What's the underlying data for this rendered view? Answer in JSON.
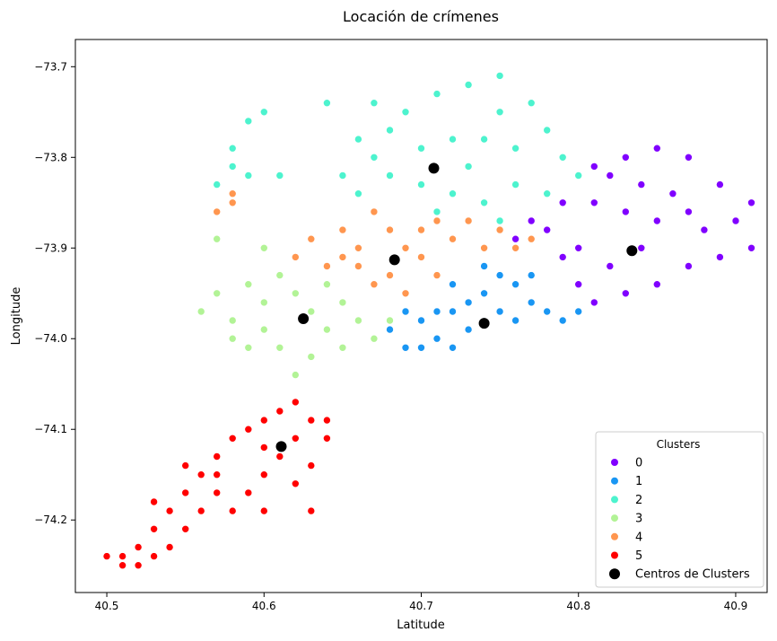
{
  "chart_data": {
    "type": "scatter",
    "title": "Locación de crímenes",
    "xlabel": "Latitude",
    "ylabel": "Longitude",
    "xlim": [
      40.48,
      40.92
    ],
    "ylim": [
      -74.28,
      -73.67
    ],
    "x_ticks": [
      40.5,
      40.6,
      40.7,
      40.8,
      40.9
    ],
    "x_tick_labels": [
      "40.5",
      "40.6",
      "40.7",
      "40.8",
      "40.9"
    ],
    "y_ticks": [
      -73.7,
      -73.8,
      -73.9,
      -74.0,
      -74.1,
      -74.2
    ],
    "y_tick_labels": [
      "−73.7",
      "−73.8",
      "−73.9",
      "−74.0",
      "−74.1",
      "−74.2"
    ],
    "grid": false,
    "legend": {
      "title": "Clusters",
      "position": "bottom-right"
    },
    "series": [
      {
        "name": "0",
        "color": "#8000ff",
        "points": [
          [
            40.81,
            -73.81
          ],
          [
            40.83,
            -73.8
          ],
          [
            40.85,
            -73.79
          ],
          [
            40.87,
            -73.8
          ],
          [
            40.89,
            -73.83
          ],
          [
            40.91,
            -73.85
          ],
          [
            40.91,
            -73.9
          ],
          [
            40.89,
            -73.91
          ],
          [
            40.87,
            -73.92
          ],
          [
            40.85,
            -73.94
          ],
          [
            40.83,
            -73.95
          ],
          [
            40.81,
            -73.96
          ],
          [
            40.8,
            -73.94
          ],
          [
            40.79,
            -73.91
          ],
          [
            40.78,
            -73.88
          ],
          [
            40.79,
            -73.85
          ],
          [
            40.81,
            -73.85
          ],
          [
            40.83,
            -73.86
          ],
          [
            40.85,
            -73.87
          ],
          [
            40.87,
            -73.86
          ],
          [
            40.84,
            -73.9
          ],
          [
            40.82,
            -73.92
          ],
          [
            40.86,
            -73.84
          ],
          [
            40.88,
            -73.88
          ],
          [
            40.8,
            -73.9
          ],
          [
            40.77,
            -73.87
          ],
          [
            40.76,
            -73.89
          ],
          [
            40.82,
            -73.82
          ],
          [
            40.84,
            -73.83
          ],
          [
            40.9,
            -73.87
          ]
        ]
      },
      {
        "name": "1",
        "color": "#1996f3",
        "points": [
          [
            40.68,
            -73.99
          ],
          [
            40.69,
            -74.01
          ],
          [
            40.7,
            -73.98
          ],
          [
            40.71,
            -74.0
          ],
          [
            40.72,
            -73.97
          ],
          [
            40.73,
            -73.99
          ],
          [
            40.74,
            -73.95
          ],
          [
            40.75,
            -73.97
          ],
          [
            40.76,
            -73.94
          ],
          [
            40.77,
            -73.96
          ],
          [
            40.78,
            -73.97
          ],
          [
            40.75,
            -73.93
          ],
          [
            40.73,
            -73.96
          ],
          [
            40.71,
            -73.97
          ],
          [
            40.69,
            -73.97
          ],
          [
            40.74,
            -73.98
          ],
          [
            40.76,
            -73.98
          ],
          [
            40.72,
            -74.01
          ],
          [
            40.7,
            -74.01
          ],
          [
            40.77,
            -73.93
          ],
          [
            40.79,
            -73.98
          ],
          [
            40.8,
            -73.97
          ],
          [
            40.74,
            -73.92
          ],
          [
            40.72,
            -73.94
          ]
        ]
      },
      {
        "name": "2",
        "color": "#4df3ce",
        "points": [
          [
            40.67,
            -73.74
          ],
          [
            40.69,
            -73.75
          ],
          [
            40.71,
            -73.73
          ],
          [
            40.73,
            -73.72
          ],
          [
            40.75,
            -73.71
          ],
          [
            40.77,
            -73.74
          ],
          [
            40.78,
            -73.77
          ],
          [
            40.79,
            -73.8
          ],
          [
            40.8,
            -73.82
          ],
          [
            40.78,
            -73.84
          ],
          [
            40.76,
            -73.83
          ],
          [
            40.74,
            -73.85
          ],
          [
            40.72,
            -73.84
          ],
          [
            40.7,
            -73.83
          ],
          [
            40.68,
            -73.82
          ],
          [
            40.67,
            -73.8
          ],
          [
            40.66,
            -73.78
          ],
          [
            40.68,
            -73.77
          ],
          [
            40.7,
            -73.79
          ],
          [
            40.72,
            -73.78
          ],
          [
            40.74,
            -73.78
          ],
          [
            40.76,
            -73.79
          ],
          [
            40.75,
            -73.75
          ],
          [
            40.73,
            -73.81
          ],
          [
            40.71,
            -73.86
          ],
          [
            40.75,
            -73.87
          ],
          [
            40.59,
            -73.76
          ],
          [
            40.6,
            -73.75
          ],
          [
            40.58,
            -73.79
          ],
          [
            40.59,
            -73.82
          ],
          [
            40.61,
            -73.82
          ],
          [
            40.57,
            -73.83
          ],
          [
            40.58,
            -73.81
          ],
          [
            40.64,
            -73.74
          ],
          [
            40.66,
            -73.84
          ],
          [
            40.65,
            -73.82
          ]
        ]
      },
      {
        "name": "3",
        "color": "#b2f396",
        "points": [
          [
            40.57,
            -73.95
          ],
          [
            40.58,
            -73.98
          ],
          [
            40.59,
            -73.94
          ],
          [
            40.6,
            -73.96
          ],
          [
            40.61,
            -73.93
          ],
          [
            40.62,
            -73.95
          ],
          [
            40.63,
            -73.97
          ],
          [
            40.64,
            -73.99
          ],
          [
            40.65,
            -73.96
          ],
          [
            40.66,
            -73.98
          ],
          [
            40.67,
            -74.0
          ],
          [
            40.68,
            -73.98
          ],
          [
            40.63,
            -74.02
          ],
          [
            40.62,
            -74.04
          ],
          [
            40.61,
            -74.01
          ],
          [
            40.6,
            -73.99
          ],
          [
            40.59,
            -74.01
          ],
          [
            40.58,
            -74.0
          ],
          [
            40.64,
            -73.94
          ],
          [
            40.56,
            -73.97
          ],
          [
            40.57,
            -73.89
          ],
          [
            40.6,
            -73.9
          ],
          [
            40.65,
            -74.01
          ]
        ]
      },
      {
        "name": "4",
        "color": "#ff964f",
        "points": [
          [
            40.62,
            -73.91
          ],
          [
            40.63,
            -73.89
          ],
          [
            40.64,
            -73.92
          ],
          [
            40.65,
            -73.88
          ],
          [
            40.66,
            -73.9
          ],
          [
            40.67,
            -73.86
          ],
          [
            40.68,
            -73.88
          ],
          [
            40.69,
            -73.9
          ],
          [
            40.7,
            -73.88
          ],
          [
            40.71,
            -73.87
          ],
          [
            40.72,
            -73.89
          ],
          [
            40.73,
            -73.87
          ],
          [
            40.74,
            -73.9
          ],
          [
            40.75,
            -73.88
          ],
          [
            40.76,
            -73.9
          ],
          [
            40.77,
            -73.89
          ],
          [
            40.68,
            -73.93
          ],
          [
            40.69,
            -73.95
          ],
          [
            40.67,
            -73.94
          ],
          [
            40.66,
            -73.92
          ],
          [
            40.71,
            -73.93
          ],
          [
            40.58,
            -73.84
          ],
          [
            40.57,
            -73.86
          ],
          [
            40.58,
            -73.85
          ],
          [
            40.65,
            -73.91
          ],
          [
            40.7,
            -73.91
          ]
        ]
      },
      {
        "name": "5",
        "color": "#ff0000",
        "points": [
          [
            40.51,
            -74.24
          ],
          [
            40.52,
            -74.23
          ],
          [
            40.53,
            -74.21
          ],
          [
            40.54,
            -74.19
          ],
          [
            40.55,
            -74.17
          ],
          [
            40.56,
            -74.15
          ],
          [
            40.57,
            -74.13
          ],
          [
            40.58,
            -74.11
          ],
          [
            40.59,
            -74.1
          ],
          [
            40.6,
            -74.09
          ],
          [
            40.61,
            -74.08
          ],
          [
            40.62,
            -74.07
          ],
          [
            40.63,
            -74.09
          ],
          [
            40.64,
            -74.11
          ],
          [
            40.63,
            -74.14
          ],
          [
            40.62,
            -74.16
          ],
          [
            40.61,
            -74.13
          ],
          [
            40.6,
            -74.15
          ],
          [
            40.59,
            -74.17
          ],
          [
            40.58,
            -74.19
          ],
          [
            40.57,
            -74.17
          ],
          [
            40.56,
            -74.19
          ],
          [
            40.55,
            -74.21
          ],
          [
            40.54,
            -74.23
          ],
          [
            40.53,
            -74.24
          ],
          [
            40.52,
            -74.25
          ],
          [
            40.6,
            -74.12
          ],
          [
            40.62,
            -74.11
          ],
          [
            40.64,
            -74.09
          ],
          [
            40.55,
            -74.14
          ],
          [
            40.53,
            -74.18
          ],
          [
            40.57,
            -74.15
          ],
          [
            40.5,
            -74.24
          ],
          [
            40.51,
            -74.25
          ],
          [
            40.6,
            -74.19
          ],
          [
            40.63,
            -74.19
          ]
        ]
      }
    ],
    "centers": {
      "name": "Centros de Clusters",
      "color": "#000000",
      "points": [
        [
          40.834,
          -73.903
        ],
        [
          40.74,
          -73.983
        ],
        [
          40.708,
          -73.812
        ],
        [
          40.625,
          -73.978
        ],
        [
          40.683,
          -73.913
        ],
        [
          40.611,
          -74.119
        ]
      ]
    }
  }
}
